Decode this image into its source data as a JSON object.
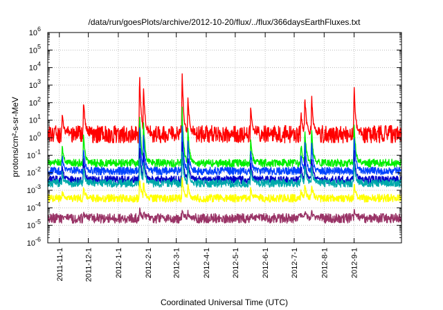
{
  "chart_data": {
    "type": "line",
    "title": "/data/run/goesPlots/archive/2012-10-20/flux/../flux/366daysEarthFluxes.txt",
    "xlabel": "Coordinated Universal Time (UTC)",
    "ylabel": "protons/cm²-s-sr-MeV",
    "y_scale": "log",
    "ylim_exp": [
      -6,
      6
    ],
    "y_ticks": [
      {
        "base": "10",
        "exp": "-6"
      },
      {
        "base": "10",
        "exp": "-5"
      },
      {
        "base": "10",
        "exp": "-4"
      },
      {
        "base": "10",
        "exp": "-3"
      },
      {
        "base": "10",
        "exp": "-2"
      },
      {
        "base": "10",
        "exp": "-1"
      },
      {
        "base": "10",
        "exp": "0"
      },
      {
        "base": "10",
        "exp": "1"
      },
      {
        "base": "10",
        "exp": "2"
      },
      {
        "base": "10",
        "exp": "3"
      },
      {
        "base": "10",
        "exp": "4"
      },
      {
        "base": "10",
        "exp": "5"
      },
      {
        "base": "10",
        "exp": "6"
      }
    ],
    "xlim": [
      "2011-10-20",
      "2012-10-20"
    ],
    "x_ticks": [
      "2011-11-1",
      "2011-12-1",
      "2012-1-1",
      "2012-2-1",
      "2012-3-1",
      "2012-4-1",
      "2012-5-1",
      "2012-6-1",
      "2012-7-1",
      "2012-8-1",
      "2012-9-1"
    ],
    "grid": true,
    "colors": [
      "#ff0000",
      "#00ee00",
      "#0044ff",
      "#0000cc",
      "#00aaaa",
      "#ffff00",
      "#993366"
    ],
    "baselines_log10": [
      0.2,
      -1.45,
      -1.9,
      -2.4,
      -2.6,
      -3.45,
      -4.6
    ],
    "events": [
      {
        "date": "2011-11-04",
        "peak_log10": 1.4
      },
      {
        "date": "2011-11-26",
        "peak_log10": 2.2
      },
      {
        "date": "2012-01-23",
        "peak_log10": 3.7
      },
      {
        "date": "2012-01-27",
        "peak_log10": 3.2
      },
      {
        "date": "2012-03-07",
        "peak_log10": 3.9
      },
      {
        "date": "2012-03-13",
        "peak_log10": 2.5
      },
      {
        "date": "2012-05-17",
        "peak_log10": 1.8
      },
      {
        "date": "2012-07-08",
        "peak_log10": 1.5
      },
      {
        "date": "2012-07-12",
        "peak_log10": 2.5
      },
      {
        "date": "2012-07-19",
        "peak_log10": 2.5
      },
      {
        "date": "2012-09-01",
        "peak_log10": 2.9
      }
    ]
  }
}
